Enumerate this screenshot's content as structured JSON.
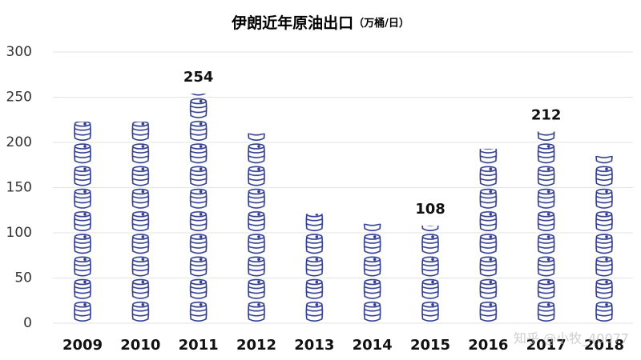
{
  "chart_data": {
    "type": "pictogram-bar",
    "title": "伊朗近年原油出口",
    "subtitle": "（万桶/日）",
    "categories": [
      "2009",
      "2010",
      "2011",
      "2012",
      "2013",
      "2014",
      "2015",
      "2016",
      "2017",
      "2018"
    ],
    "values": [
      223,
      223,
      254,
      210,
      121,
      110,
      108,
      193,
      212,
      185
    ],
    "value_labels": [
      null,
      null,
      "254",
      null,
      null,
      null,
      "108",
      null,
      "212",
      null
    ],
    "color": "#2e3a8c",
    "ylim": [
      0,
      300
    ],
    "yticks": [
      0,
      50,
      100,
      150,
      200,
      250,
      300
    ],
    "grid": true,
    "watermark": "知乎 @小牧_40077"
  }
}
